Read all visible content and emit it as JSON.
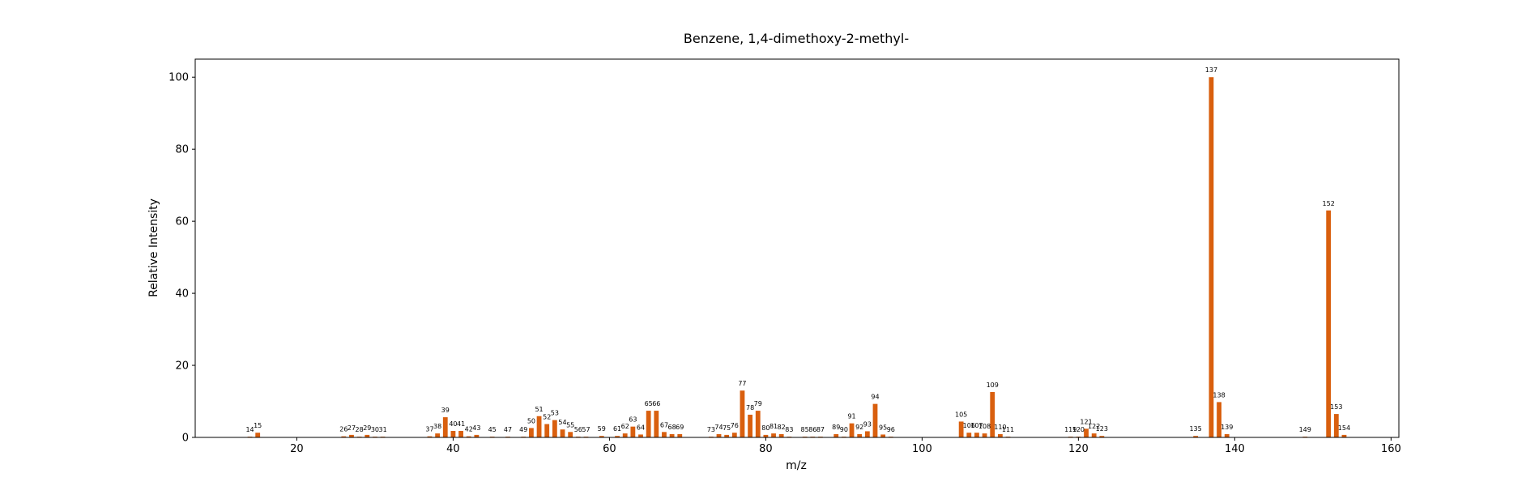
{
  "chart_data": {
    "type": "bar",
    "title": "Benzene, 1,4-dimethoxy-2-methyl-",
    "xlabel": "m/z",
    "ylabel": "Relative Intensity",
    "xlim": [
      7,
      161
    ],
    "ylim": [
      0,
      105
    ],
    "xticks": [
      20,
      40,
      60,
      80,
      100,
      120,
      140,
      160
    ],
    "yticks": [
      0,
      20,
      40,
      60,
      80,
      100
    ],
    "bar_color": "#d95f0e",
    "grid": false,
    "points": [
      {
        "x": 14,
        "y": 0.2
      },
      {
        "x": 15,
        "y": 1.3
      },
      {
        "x": 26,
        "y": 0.3
      },
      {
        "x": 27,
        "y": 0.7
      },
      {
        "x": 28,
        "y": 0.2
      },
      {
        "x": 29,
        "y": 0.7
      },
      {
        "x": 30,
        "y": 0.2
      },
      {
        "x": 31,
        "y": 0.2
      },
      {
        "x": 37,
        "y": 0.3
      },
      {
        "x": 38,
        "y": 1.1
      },
      {
        "x": 39,
        "y": 5.6
      },
      {
        "x": 40,
        "y": 1.8
      },
      {
        "x": 41,
        "y": 1.8
      },
      {
        "x": 42,
        "y": 0.3
      },
      {
        "x": 43,
        "y": 0.7
      },
      {
        "x": 45,
        "y": 0.2
      },
      {
        "x": 47,
        "y": 0.2
      },
      {
        "x": 49,
        "y": 0.2
      },
      {
        "x": 50,
        "y": 2.6
      },
      {
        "x": 51,
        "y": 5.9
      },
      {
        "x": 52,
        "y": 3.7
      },
      {
        "x": 53,
        "y": 4.8
      },
      {
        "x": 54,
        "y": 2.2
      },
      {
        "x": 55,
        "y": 1.5
      },
      {
        "x": 56,
        "y": 0.2
      },
      {
        "x": 57,
        "y": 0.2
      },
      {
        "x": 59,
        "y": 0.4
      },
      {
        "x": 61,
        "y": 0.4
      },
      {
        "x": 62,
        "y": 1.1
      },
      {
        "x": 63,
        "y": 3.0
      },
      {
        "x": 64,
        "y": 0.8
      },
      {
        "x": 65,
        "y": 7.4
      },
      {
        "x": 66,
        "y": 7.4
      },
      {
        "x": 67,
        "y": 1.5
      },
      {
        "x": 68,
        "y": 0.9
      },
      {
        "x": 69,
        "y": 0.9
      },
      {
        "x": 73,
        "y": 0.2
      },
      {
        "x": 74,
        "y": 0.9
      },
      {
        "x": 75,
        "y": 0.7
      },
      {
        "x": 76,
        "y": 1.3
      },
      {
        "x": 77,
        "y": 13.0
      },
      {
        "x": 78,
        "y": 6.3
      },
      {
        "x": 79,
        "y": 7.4
      },
      {
        "x": 80,
        "y": 0.7
      },
      {
        "x": 81,
        "y": 1.1
      },
      {
        "x": 82,
        "y": 0.9
      },
      {
        "x": 83,
        "y": 0.2
      },
      {
        "x": 85,
        "y": 0.2
      },
      {
        "x": 86,
        "y": 0.2
      },
      {
        "x": 87,
        "y": 0.2
      },
      {
        "x": 89,
        "y": 0.9
      },
      {
        "x": 90,
        "y": 0.2
      },
      {
        "x": 91,
        "y": 3.9
      },
      {
        "x": 92,
        "y": 0.9
      },
      {
        "x": 93,
        "y": 1.7
      },
      {
        "x": 94,
        "y": 9.3
      },
      {
        "x": 95,
        "y": 0.8
      },
      {
        "x": 96,
        "y": 0.2
      },
      {
        "x": 105,
        "y": 4.4
      },
      {
        "x": 106,
        "y": 1.3
      },
      {
        "x": 107,
        "y": 1.3
      },
      {
        "x": 108,
        "y": 1.1
      },
      {
        "x": 109,
        "y": 12.6
      },
      {
        "x": 110,
        "y": 0.9
      },
      {
        "x": 111,
        "y": 0.2
      },
      {
        "x": 119,
        "y": 0.2
      },
      {
        "x": 120,
        "y": 0.2
      },
      {
        "x": 121,
        "y": 2.4
      },
      {
        "x": 122,
        "y": 1.1
      },
      {
        "x": 123,
        "y": 0.4
      },
      {
        "x": 135,
        "y": 0.4
      },
      {
        "x": 137,
        "y": 100
      },
      {
        "x": 138,
        "y": 9.8
      },
      {
        "x": 139,
        "y": 0.9
      },
      {
        "x": 149,
        "y": 0.2
      },
      {
        "x": 152,
        "y": 63.0
      },
      {
        "x": 153,
        "y": 6.5
      },
      {
        "x": 154,
        "y": 0.7
      }
    ]
  }
}
